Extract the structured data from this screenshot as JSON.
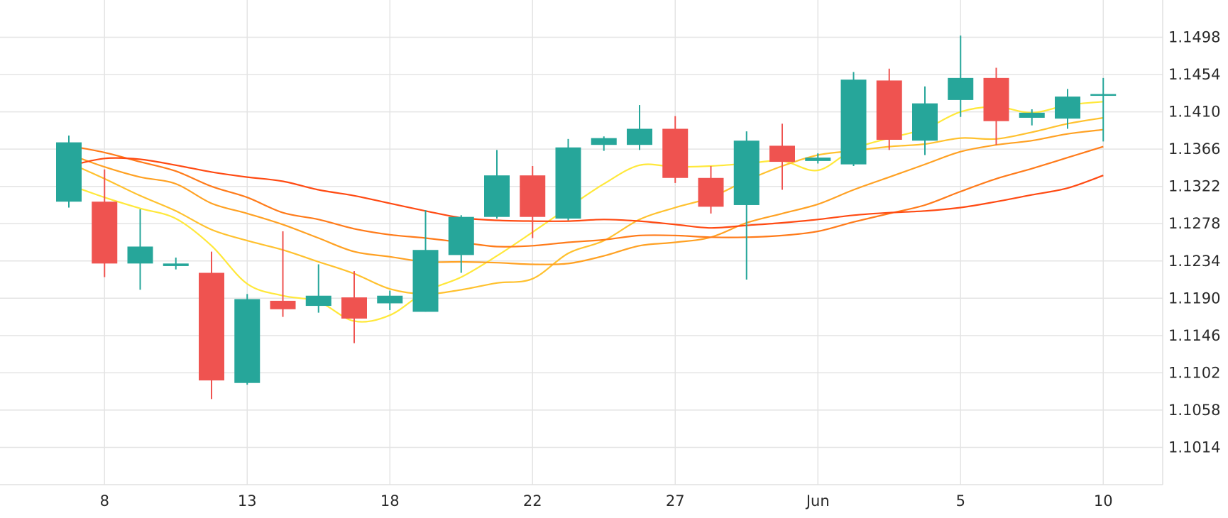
{
  "chart_data": {
    "type": "candlestick",
    "title": "",
    "xlabel": "",
    "ylabel": "",
    "ylim": [
      1.097,
      1.1542
    ],
    "grid": true,
    "y_ticks": [
      "1.1014",
      "1.1058",
      "1.1102",
      "1.1146",
      "1.1190",
      "1.1234",
      "1.1278",
      "1.1322",
      "1.1366",
      "1.1410",
      "1.1454",
      "1.1498"
    ],
    "x_ticks": [
      {
        "label": "8",
        "index": 1
      },
      {
        "label": "13",
        "index": 5
      },
      {
        "label": "18",
        "index": 9
      },
      {
        "label": "22",
        "index": 13
      },
      {
        "label": "27",
        "index": 17
      },
      {
        "label": "Jun",
        "index": 21
      },
      {
        "label": "5",
        "index": 25
      },
      {
        "label": "10",
        "index": 29
      }
    ],
    "candles": [
      {
        "open": 1.1304,
        "high": 1.1382,
        "low": 1.1297,
        "close": 1.1374
      },
      {
        "open": 1.1304,
        "high": 1.1342,
        "low": 1.1215,
        "close": 1.1231
      },
      {
        "open": 1.1231,
        "high": 1.1295,
        "low": 1.12,
        "close": 1.1251
      },
      {
        "open": 1.1228,
        "high": 1.1238,
        "low": 1.1224,
        "close": 1.1231
      },
      {
        "open": 1.122,
        "high": 1.1245,
        "low": 1.1071,
        "close": 1.1093
      },
      {
        "open": 1.109,
        "high": 1.1195,
        "low": 1.1088,
        "close": 1.1189
      },
      {
        "open": 1.1187,
        "high": 1.1269,
        "low": 1.1168,
        "close": 1.1177
      },
      {
        "open": 1.1181,
        "high": 1.123,
        "low": 1.1173,
        "close": 1.1193
      },
      {
        "open": 1.1191,
        "high": 1.1222,
        "low": 1.1137,
        "close": 1.1166
      },
      {
        "open": 1.1184,
        "high": 1.1199,
        "low": 1.1176,
        "close": 1.1193
      },
      {
        "open": 1.1174,
        "high": 1.1294,
        "low": 1.1174,
        "close": 1.1247
      },
      {
        "open": 1.1241,
        "high": 1.1288,
        "low": 1.122,
        "close": 1.1286
      },
      {
        "open": 1.1286,
        "high": 1.1365,
        "low": 1.1284,
        "close": 1.1335
      },
      {
        "open": 1.1335,
        "high": 1.1346,
        "low": 1.1261,
        "close": 1.1286
      },
      {
        "open": 1.1284,
        "high": 1.1378,
        "low": 1.1282,
        "close": 1.1368
      },
      {
        "open": 1.1371,
        "high": 1.1381,
        "low": 1.1364,
        "close": 1.1379
      },
      {
        "open": 1.1371,
        "high": 1.1418,
        "low": 1.1365,
        "close": 1.139
      },
      {
        "open": 1.139,
        "high": 1.1405,
        "low": 1.1326,
        "close": 1.1332
      },
      {
        "open": 1.1332,
        "high": 1.1346,
        "low": 1.129,
        "close": 1.1298
      },
      {
        "open": 1.13,
        "high": 1.1387,
        "low": 1.1212,
        "close": 1.1376
      },
      {
        "open": 1.137,
        "high": 1.1396,
        "low": 1.1318,
        "close": 1.1351
      },
      {
        "open": 1.1352,
        "high": 1.1361,
        "low": 1.1349,
        "close": 1.1356
      },
      {
        "open": 1.1348,
        "high": 1.1457,
        "low": 1.1346,
        "close": 1.1448
      },
      {
        "open": 1.1447,
        "high": 1.1461,
        "low": 1.1365,
        "close": 1.1377
      },
      {
        "open": 1.1376,
        "high": 1.144,
        "low": 1.1359,
        "close": 1.142
      },
      {
        "open": 1.1424,
        "high": 1.15,
        "low": 1.1404,
        "close": 1.145
      },
      {
        "open": 1.145,
        "high": 1.1462,
        "low": 1.1371,
        "close": 1.1399
      },
      {
        "open": 1.1403,
        "high": 1.1413,
        "low": 1.1394,
        "close": 1.1409
      },
      {
        "open": 1.1402,
        "high": 1.1437,
        "low": 1.139,
        "close": 1.1428
      },
      {
        "open": 1.1431,
        "high": 1.145,
        "low": 1.1375,
        "close": 1.1431
      }
    ],
    "moving_averages": [
      {
        "color": "#ffe83a",
        "values": [
          1.1324,
          1.1309,
          1.1296,
          1.1284,
          1.1252,
          1.1207,
          1.1193,
          1.1186,
          1.1163,
          1.117,
          1.1198,
          1.1215,
          1.124,
          1.1268,
          1.1297,
          1.1325,
          1.1347,
          1.1345,
          1.1346,
          1.1349,
          1.1352,
          1.1341,
          1.1366,
          1.1379,
          1.139,
          1.141,
          1.1416,
          1.1409,
          1.1418,
          1.1422
        ]
      },
      {
        "color": "#ffc12e",
        "values": [
          1.135,
          1.1331,
          1.1311,
          1.1293,
          1.1271,
          1.1258,
          1.1247,
          1.1233,
          1.1219,
          1.1201,
          1.1195,
          1.12,
          1.1208,
          1.1213,
          1.1243,
          1.1258,
          1.1283,
          1.1297,
          1.1309,
          1.1329,
          1.1346,
          1.1359,
          1.1364,
          1.1369,
          1.1372,
          1.1379,
          1.1378,
          1.1386,
          1.1396,
          1.1403
        ]
      },
      {
        "color": "#ffa123",
        "values": [
          1.136,
          1.1345,
          1.1333,
          1.1325,
          1.1302,
          1.129,
          1.1277,
          1.1261,
          1.1245,
          1.1239,
          1.1233,
          1.1233,
          1.1232,
          1.123,
          1.1231,
          1.124,
          1.1252,
          1.1256,
          1.1262,
          1.1279,
          1.129,
          1.1301,
          1.1318,
          1.1333,
          1.1348,
          1.1363,
          1.1371,
          1.1376,
          1.1384,
          1.1389
        ]
      },
      {
        "color": "#ff7b1a",
        "values": [
          1.137,
          1.1362,
          1.1351,
          1.134,
          1.1322,
          1.1309,
          1.1291,
          1.1283,
          1.1272,
          1.1265,
          1.1261,
          1.1256,
          1.1251,
          1.1252,
          1.1256,
          1.1259,
          1.1264,
          1.1264,
          1.1262,
          1.1262,
          1.1264,
          1.1269,
          1.128,
          1.129,
          1.13,
          1.1316,
          1.1331,
          1.1343,
          1.1356,
          1.1369
        ]
      },
      {
        "color": "#ff4a12",
        "values": [
          1.1346,
          1.1355,
          1.1354,
          1.1347,
          1.1339,
          1.1333,
          1.1328,
          1.1318,
          1.1311,
          1.1302,
          1.1293,
          1.1285,
          1.1282,
          1.1281,
          1.1281,
          1.1283,
          1.1281,
          1.1277,
          1.1273,
          1.1276,
          1.1279,
          1.1283,
          1.1288,
          1.1291,
          1.1293,
          1.1297,
          1.1304,
          1.1312,
          1.132,
          1.1335
        ]
      }
    ],
    "colors": {
      "up": "#26a69a",
      "down": "#ef5350",
      "grid": "#e4e4e4",
      "background": "#ffffff",
      "text": "#2b2b2b"
    }
  }
}
